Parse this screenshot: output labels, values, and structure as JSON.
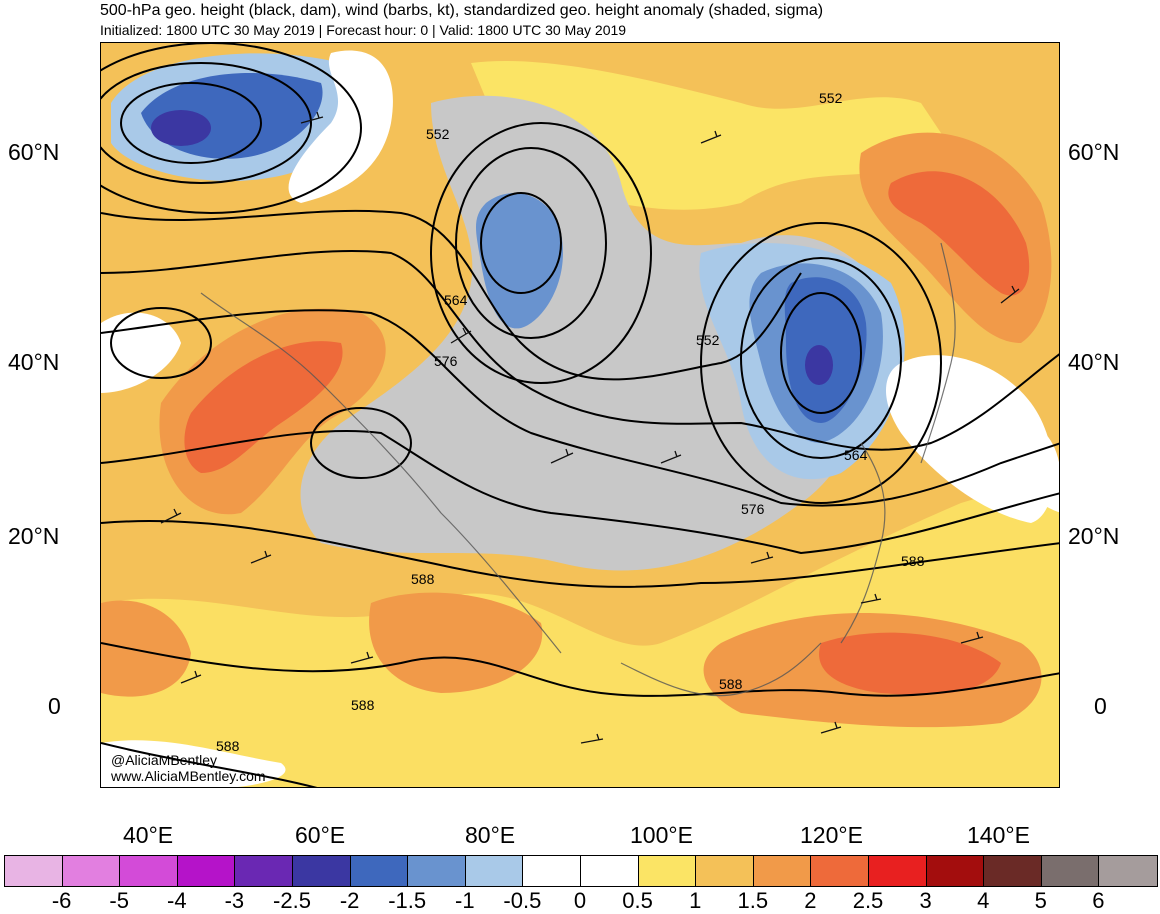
{
  "title": "500-hPa geo. height (black, dam), wind (barbs, kt), standardized geo. height anomaly (shaded, sigma)",
  "subtitle": "Initialized: 1800 UTC 30 May 2019 | Forecast hour: 0 | Valid: 1800 UTC 30 May 2019",
  "credit": {
    "handle": "@AliciaMBentley",
    "website": "www.AliciaMBentley.com"
  },
  "lat_labels": [
    "60°N",
    "40°N",
    "20°N",
    "0"
  ],
  "lon_labels": [
    "40°E",
    "60°E",
    "80°E",
    "100°E",
    "120°E",
    "140°E"
  ],
  "contour_labels": [
    "552",
    "552",
    "552",
    "564",
    "564",
    "576",
    "576",
    "588",
    "588",
    "588",
    "588",
    "588"
  ],
  "colorbar": {
    "colors": [
      "#e8b4e4",
      "#e27fe0",
      "#d34bd8",
      "#b513c9",
      "#6a28b3",
      "#3b37a2",
      "#3e68bd",
      "#6993cf",
      "#a9c9e8",
      "#ffffff",
      "#ffffff",
      "#fbe465",
      "#f4c158",
      "#f19a49",
      "#ee6a3a",
      "#e82020",
      "#a30d0d",
      "#6a2a26",
      "#7a6e6d",
      "#a59c9c"
    ],
    "labels": [
      "-6",
      "-5",
      "-4",
      "-3",
      "-2.5",
      "-2",
      "-1.5",
      "-1",
      "-0.5",
      "0",
      "0.5",
      "1",
      "1.5",
      "2",
      "2.5",
      "3",
      "4",
      "5",
      "6"
    ]
  }
}
